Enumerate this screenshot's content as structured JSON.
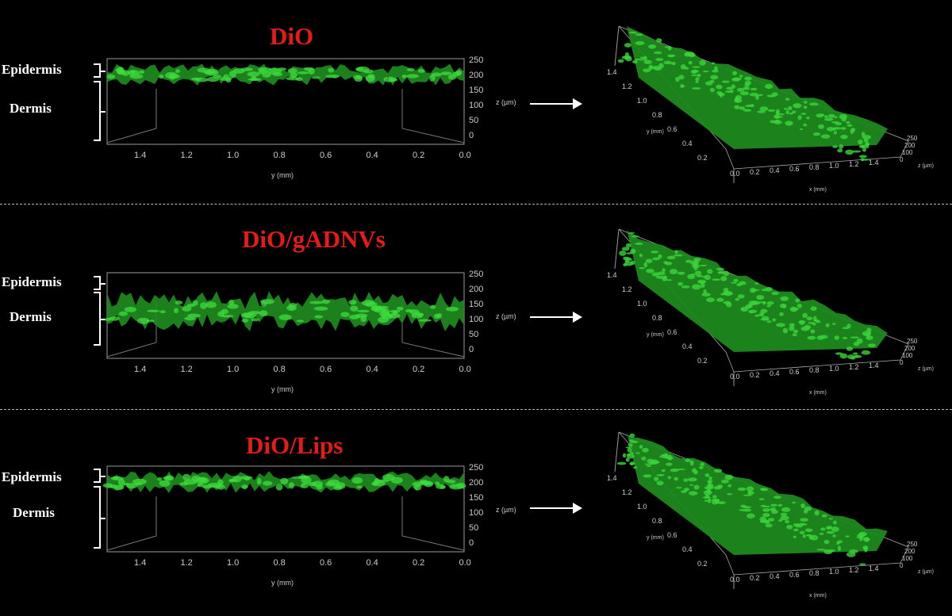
{
  "panels": [
    {
      "title": "DiO",
      "epidermis_label": "Epidermis",
      "dermis_label": "Dermis",
      "side_view": {
        "y_ticks": [
          "1.4",
          "1.2",
          "1.0",
          "0.8",
          "0.6",
          "0.4",
          "0.2",
          "0.0"
        ],
        "y_label": "y (mm)",
        "z_ticks": [
          "250",
          "200",
          "150",
          "100",
          "50",
          "0"
        ],
        "z_label": "z (µm)"
      },
      "iso_view": {
        "y_ticks": [
          "1.4",
          "1.2",
          "1.0",
          "0.8",
          "0.6",
          "0.4",
          "0.2"
        ],
        "y_label": "y (mm)",
        "x_ticks": [
          "0.0",
          "0.2",
          "0.4",
          "0.6",
          "0.8",
          "1.0",
          "1.2",
          "1.4"
        ],
        "x_label": "x (mm)",
        "z_ticks": [
          "250",
          "200",
          "100",
          "0"
        ],
        "z_label": "z (µm)"
      }
    },
    {
      "title": "DiO/gADNVs",
      "epidermis_label": "Epidermis",
      "dermis_label": "Dermis",
      "side_view": {
        "y_ticks": [
          "1.4",
          "1.2",
          "1.0",
          "0.8",
          "0.6",
          "0.4",
          "0.2",
          "0.0"
        ],
        "y_label": "y (mm)",
        "z_ticks": [
          "250",
          "200",
          "150",
          "100",
          "50",
          "0"
        ],
        "z_label": "z (µm)"
      },
      "iso_view": {
        "y_ticks": [
          "1.4",
          "1.2",
          "1.0",
          "0.8",
          "0.6",
          "0.4",
          "0.2"
        ],
        "y_label": "y (mm)",
        "x_ticks": [
          "0.0",
          "0.2",
          "0.4",
          "0.6",
          "0.8",
          "1.0",
          "1.2",
          "1.4"
        ],
        "x_label": "x (mm)",
        "z_ticks": [
          "250",
          "200",
          "100",
          "0"
        ],
        "z_label": "z (µm)"
      }
    },
    {
      "title": "DiO/Lips",
      "epidermis_label": "Epidermis",
      "dermis_label": "Dermis",
      "side_view": {
        "y_ticks": [
          "1.4",
          "1.2",
          "1.0",
          "0.8",
          "0.6",
          "0.4",
          "0.2",
          "0.0"
        ],
        "y_label": "y (mm)",
        "z_ticks": [
          "250",
          "200",
          "150",
          "100",
          "50",
          "0"
        ],
        "z_label": "z (µm)"
      },
      "iso_view": {
        "y_ticks": [
          "1.4",
          "1.2",
          "1.0",
          "0.8",
          "0.6",
          "0.4",
          "0.2"
        ],
        "y_label": "y (mm)",
        "x_ticks": [
          "0.0",
          "0.2",
          "0.4",
          "0.6",
          "0.8",
          "1.0",
          "1.2",
          "1.4"
        ],
        "x_label": "x (mm)",
        "z_ticks": [
          "250",
          "200",
          "100",
          "0"
        ],
        "z_label": "z (µm)"
      }
    }
  ],
  "colors": {
    "title": "#e41b17",
    "fluorescence": "#2ecc2e",
    "background": "#000000"
  }
}
